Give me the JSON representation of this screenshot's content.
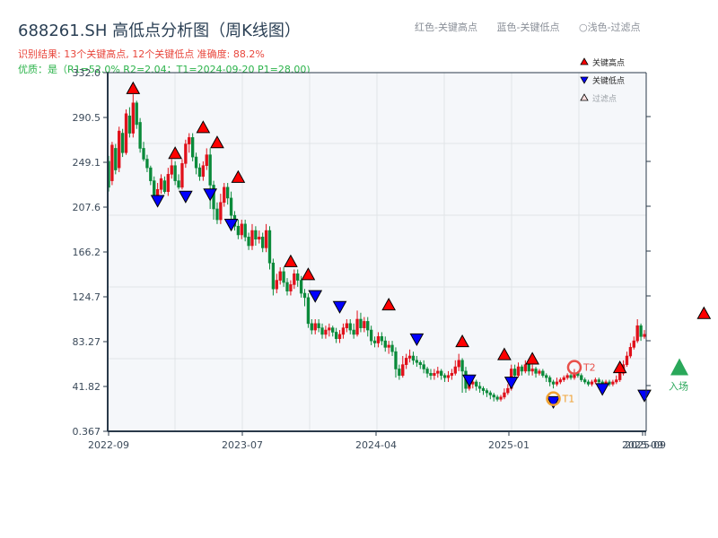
{
  "header": {
    "title": "688261.SH 高低点分析图（周K线图）",
    "result_line": "识别结果: 13个关键高点, 12个关键低点   准确度: 88.2%",
    "quality_line": "优质：是（R1=52.0%  R2=2.04；T1=2024-09-20 P1=28.00)",
    "legend_top": [
      "红色-关键高点",
      "蓝色-关键低点",
      "○浅色-过滤点"
    ]
  },
  "legend": {
    "items": [
      {
        "label": "关键高点",
        "marker": "triangle-up",
        "color": "#ff0000"
      },
      {
        "label": "关键低点",
        "marker": "triangle-down",
        "color": "#0000ff"
      },
      {
        "label": "过滤点",
        "marker": "triangle-up-outline",
        "color": "#ffe0e0"
      }
    ]
  },
  "colors": {
    "up": "#e0101a",
    "down": "#0a8a3a",
    "high_marker": "#ff0000",
    "low_marker": "#0000ff",
    "t1": "#f0a030",
    "t2": "#e8504a",
    "entry": "#2aa85a",
    "plot_bg": "#f5f7fa",
    "grid": "#e1e4e8",
    "axis": "#2a3a4a"
  },
  "chart_data": {
    "type": "candlestick",
    "title": "688261.SH 高低点分析图（周K线图）",
    "xlabel": "",
    "ylabel": "",
    "ylim": [
      0.367,
      332.0
    ],
    "yticks": [
      "332.0",
      "290.5",
      "249.1",
      "207.6",
      "166.2",
      "124.7",
      "83.27",
      "41.82",
      "0.367"
    ],
    "xticks": [
      "2022-09",
      "2023-07",
      "2024-04",
      "2025-01",
      "2025-09"
    ],
    "xtick_overlap_label": "2025-09",
    "grid": true,
    "legend_position": "top-right",
    "annotations": [
      {
        "text": "T1",
        "date": "2024-09-20",
        "price": 28.0
      },
      {
        "text": "T2",
        "price": 62.0
      },
      {
        "text": "入场",
        "price": 58.0
      }
    ],
    "candles": [
      [
        250,
        226,
        255,
        222
      ],
      [
        232,
        265,
        268,
        228
      ],
      [
        262,
        242,
        266,
        238
      ],
      [
        244,
        278,
        282,
        240
      ],
      [
        276,
        258,
        280,
        254
      ],
      [
        258,
        294,
        298,
        256
      ],
      [
        292,
        276,
        300,
        272
      ],
      [
        276,
        304,
        312,
        272
      ],
      [
        304,
        284,
        306,
        280
      ],
      [
        286,
        262,
        290,
        258
      ],
      [
        262,
        252,
        268,
        250
      ],
      [
        252,
        244,
        256,
        240
      ],
      [
        244,
        232,
        246,
        228
      ],
      [
        232,
        218,
        236,
        214
      ],
      [
        218,
        224,
        230,
        214
      ],
      [
        224,
        234,
        238,
        220
      ],
      [
        232,
        222,
        236,
        220
      ],
      [
        222,
        238,
        244,
        218
      ],
      [
        238,
        246,
        252,
        234
      ],
      [
        246,
        232,
        250,
        228
      ],
      [
        232,
        226,
        238,
        224
      ],
      [
        226,
        248,
        252,
        224
      ],
      [
        248,
        266,
        270,
        244
      ],
      [
        266,
        272,
        276,
        258
      ],
      [
        272,
        254,
        276,
        250
      ],
      [
        254,
        244,
        258,
        238
      ],
      [
        244,
        236,
        248,
        232
      ],
      [
        236,
        246,
        250,
        232
      ],
      [
        246,
        256,
        262,
        242
      ],
      [
        256,
        228,
        262,
        206
      ],
      [
        228,
        206,
        232,
        196
      ],
      [
        206,
        196,
        212,
        192
      ],
      [
        196,
        212,
        220,
        192
      ],
      [
        212,
        226,
        230,
        208
      ],
      [
        226,
        216,
        230,
        210
      ],
      [
        216,
        200,
        222,
        196
      ],
      [
        200,
        190,
        204,
        186
      ],
      [
        190,
        182,
        196,
        178
      ],
      [
        182,
        192,
        196,
        178
      ],
      [
        192,
        180,
        196,
        176
      ],
      [
        180,
        172,
        184,
        168
      ],
      [
        172,
        186,
        192,
        168
      ],
      [
        186,
        178,
        190,
        172
      ],
      [
        178,
        180,
        186,
        174
      ],
      [
        180,
        170,
        184,
        166
      ],
      [
        170,
        186,
        192,
        166
      ],
      [
        186,
        156,
        190,
        150
      ],
      [
        156,
        132,
        160,
        126
      ],
      [
        132,
        140,
        146,
        128
      ],
      [
        140,
        148,
        152,
        136
      ],
      [
        148,
        138,
        152,
        134
      ],
      [
        138,
        130,
        142,
        126
      ],
      [
        130,
        136,
        140,
        126
      ],
      [
        136,
        146,
        150,
        132
      ],
      [
        146,
        140,
        150,
        134
      ],
      [
        140,
        128,
        144,
        124
      ],
      [
        128,
        124,
        132,
        116
      ],
      [
        124,
        100,
        128,
        96
      ],
      [
        100,
        94,
        104,
        90
      ],
      [
        94,
        100,
        104,
        90
      ],
      [
        100,
        96,
        104,
        92
      ],
      [
        96,
        90,
        100,
        86
      ],
      [
        90,
        94,
        98,
        86
      ],
      [
        94,
        96,
        100,
        88
      ],
      [
        96,
        92,
        98,
        88
      ],
      [
        92,
        86,
        96,
        82
      ],
      [
        86,
        90,
        94,
        82
      ],
      [
        90,
        96,
        100,
        86
      ],
      [
        96,
        100,
        104,
        92
      ],
      [
        100,
        94,
        104,
        90
      ],
      [
        94,
        90,
        100,
        86
      ],
      [
        90,
        104,
        112,
        88
      ],
      [
        104,
        96,
        110,
        92
      ],
      [
        96,
        102,
        106,
        92
      ],
      [
        102,
        94,
        106,
        88
      ],
      [
        94,
        84,
        98,
        80
      ],
      [
        84,
        82,
        88,
        78
      ],
      [
        82,
        88,
        92,
        78
      ],
      [
        88,
        84,
        92,
        80
      ],
      [
        84,
        78,
        88,
        74
      ],
      [
        78,
        80,
        84,
        72
      ],
      [
        80,
        74,
        84,
        70
      ],
      [
        74,
        58,
        78,
        50
      ],
      [
        58,
        52,
        62,
        48
      ],
      [
        52,
        62,
        70,
        50
      ],
      [
        62,
        68,
        72,
        58
      ],
      [
        68,
        70,
        76,
        64
      ],
      [
        70,
        66,
        74,
        62
      ],
      [
        66,
        64,
        70,
        60
      ],
      [
        64,
        62,
        66,
        58
      ],
      [
        62,
        58,
        66,
        54
      ],
      [
        58,
        54,
        60,
        50
      ],
      [
        54,
        52,
        58,
        48
      ],
      [
        52,
        54,
        58,
        48
      ],
      [
        54,
        56,
        60,
        50
      ],
      [
        56,
        52,
        58,
        48
      ],
      [
        52,
        50,
        54,
        46
      ],
      [
        50,
        52,
        56,
        46
      ],
      [
        52,
        54,
        58,
        48
      ],
      [
        54,
        60,
        66,
        52
      ],
      [
        60,
        66,
        72,
        56
      ],
      [
        66,
        56,
        68,
        36
      ],
      [
        56,
        40,
        60,
        36
      ],
      [
        40,
        44,
        48,
        38
      ],
      [
        44,
        46,
        50,
        40
      ],
      [
        46,
        42,
        48,
        38
      ],
      [
        42,
        40,
        46,
        36
      ],
      [
        40,
        38,
        42,
        34
      ],
      [
        38,
        36,
        40,
        32
      ],
      [
        36,
        34,
        38,
        30
      ],
      [
        34,
        32,
        36,
        28
      ],
      [
        32,
        30,
        34,
        28
      ],
      [
        30,
        32,
        34,
        28
      ],
      [
        32,
        36,
        40,
        30
      ],
      [
        36,
        40,
        44,
        34
      ],
      [
        40,
        58,
        62,
        38
      ],
      [
        58,
        52,
        62,
        48
      ],
      [
        52,
        60,
        64,
        50
      ],
      [
        60,
        56,
        62,
        52
      ],
      [
        56,
        62,
        66,
        54
      ],
      [
        62,
        56,
        64,
        52
      ],
      [
        56,
        58,
        62,
        52
      ],
      [
        58,
        54,
        60,
        50
      ],
      [
        54,
        56,
        58,
        52
      ],
      [
        56,
        52,
        58,
        50
      ],
      [
        52,
        50,
        54,
        46
      ],
      [
        50,
        46,
        52,
        42
      ],
      [
        46,
        44,
        48,
        40
      ],
      [
        44,
        46,
        50,
        42
      ],
      [
        46,
        48,
        50,
        44
      ],
      [
        48,
        50,
        52,
        46
      ],
      [
        50,
        52,
        54,
        48
      ],
      [
        52,
        50,
        54,
        48
      ],
      [
        50,
        54,
        58,
        48
      ],
      [
        54,
        52,
        56,
        50
      ],
      [
        52,
        48,
        54,
        46
      ],
      [
        48,
        46,
        50,
        44
      ],
      [
        46,
        44,
        48,
        42
      ],
      [
        44,
        46,
        48,
        42
      ],
      [
        46,
        48,
        50,
        44
      ],
      [
        48,
        46,
        50,
        44
      ],
      [
        46,
        44,
        48,
        42
      ],
      [
        44,
        46,
        48,
        42
      ],
      [
        46,
        44,
        48,
        42
      ],
      [
        44,
        46,
        48,
        42
      ],
      [
        46,
        48,
        52,
        44
      ],
      [
        48,
        54,
        56,
        46
      ],
      [
        54,
        62,
        66,
        52
      ],
      [
        62,
        70,
        74,
        60
      ],
      [
        70,
        78,
        82,
        68
      ],
      [
        78,
        84,
        88,
        76
      ],
      [
        84,
        98,
        104,
        82
      ],
      [
        98,
        88,
        100,
        84
      ],
      [
        88,
        90,
        94,
        86
      ]
    ],
    "key_highs": [
      {
        "i": 7,
        "price": 312
      },
      {
        "i": 19,
        "price": 252
      },
      {
        "i": 27,
        "price": 276
      },
      {
        "i": 31,
        "price": 262
      },
      {
        "i": 37,
        "price": 230
      },
      {
        "i": 52,
        "price": 152
      },
      {
        "i": 57,
        "price": 140
      },
      {
        "i": 80,
        "price": 112
      },
      {
        "i": 101,
        "price": 78
      },
      {
        "i": 113,
        "price": 66
      },
      {
        "i": 121,
        "price": 62
      },
      {
        "i": 146,
        "price": 54
      },
      {
        "i": 170,
        "price": 104
      }
    ],
    "key_lows": [
      {
        "i": 14,
        "price": 214
      },
      {
        "i": 22,
        "price": 218
      },
      {
        "i": 29,
        "price": 220
      },
      {
        "i": 35,
        "price": 192
      },
      {
        "i": 59,
        "price": 126
      },
      {
        "i": 66,
        "price": 116
      },
      {
        "i": 88,
        "price": 86
      },
      {
        "i": 103,
        "price": 48
      },
      {
        "i": 115,
        "price": 46
      },
      {
        "i": 127,
        "price": 28
      },
      {
        "i": 141,
        "price": 40
      },
      {
        "i": 153,
        "price": 34
      }
    ],
    "t1": {
      "i": 127,
      "price": 28
    },
    "t2": {
      "i": 133,
      "price": 62
    },
    "entry": {
      "i": 163,
      "price": 58
    }
  }
}
